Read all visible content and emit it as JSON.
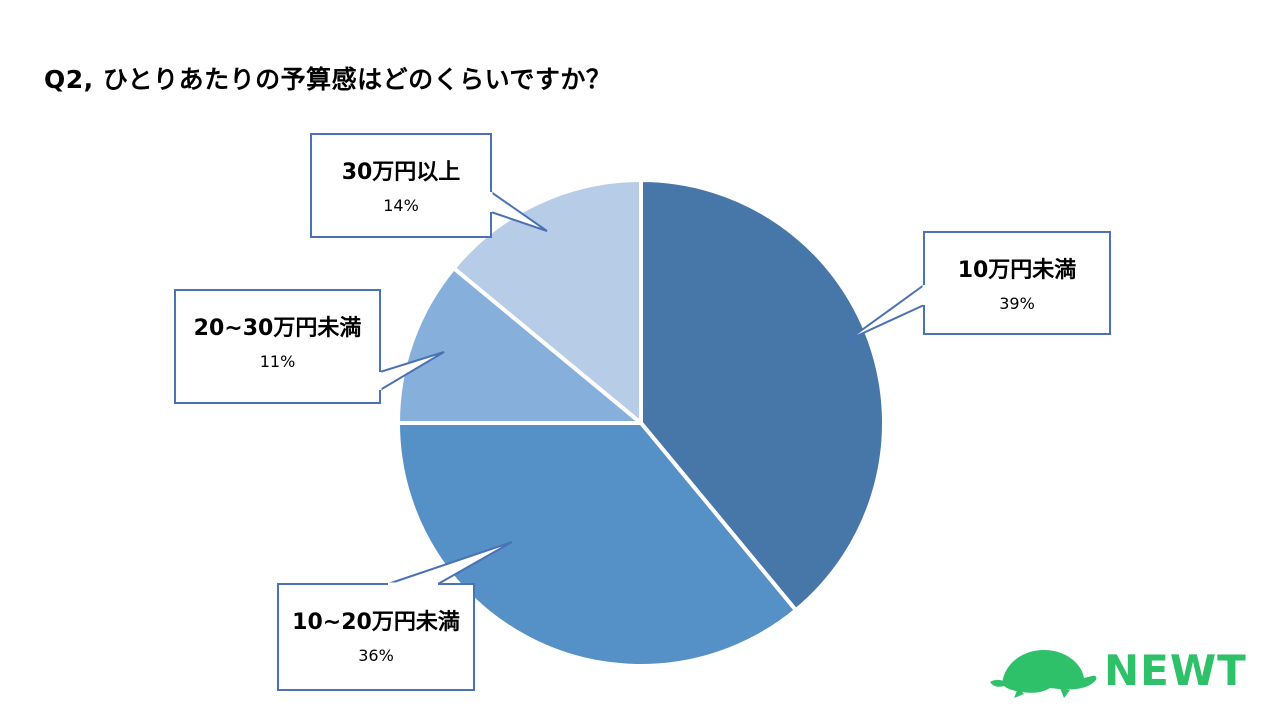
{
  "page": {
    "title": "Q2, ひとりあたりの予算感はどのくらいですか？"
  },
  "chart_data": {
    "type": "pie",
    "title": "",
    "start_angle_deg": 0,
    "direction": "clockwise",
    "slices": [
      {
        "label": "10万円未満",
        "value": 39,
        "value_label": "39%",
        "color": "#4677a8"
      },
      {
        "label": "10~20万円未満",
        "value": 36,
        "value_label": "36%",
        "color": "#5590c6"
      },
      {
        "label": "20~30万円未満",
        "value": 11,
        "value_label": "11%",
        "color": "#87afdc"
      },
      {
        "label": "30万円以上",
        "value": 14,
        "value_label": "14%",
        "color": "#b7cce6"
      }
    ],
    "callout_border_color": "#4a72b5"
  },
  "logo": {
    "text": "NEWT",
    "color": "#2ec16a",
    "icon": "turtle-icon"
  }
}
